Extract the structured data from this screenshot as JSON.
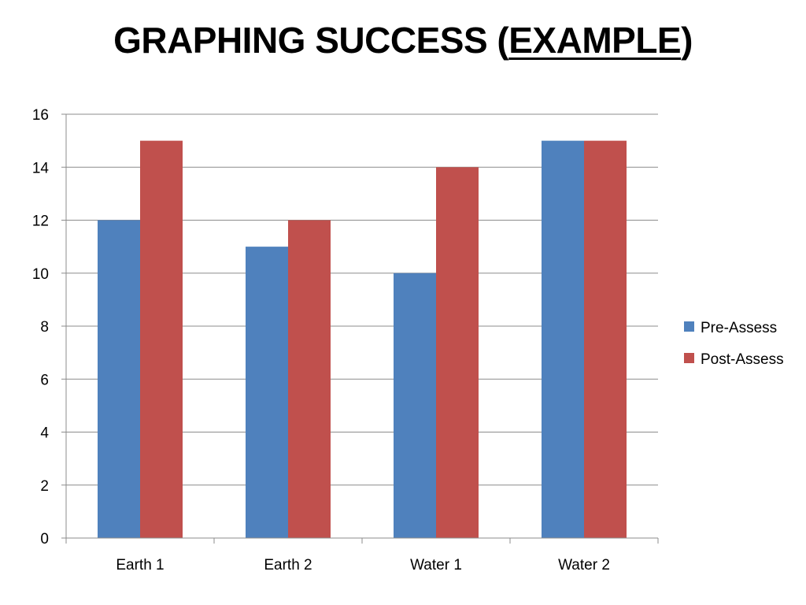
{
  "slide": {
    "title_prefix": "GRAPHING SUCCESS (",
    "title_emphasis": "EXAMPLE",
    "title_suffix": ")"
  },
  "chart_data": {
    "type": "bar",
    "categories": [
      "Earth 1",
      "Earth 2",
      "Water 1",
      "Water 2"
    ],
    "series": [
      {
        "name": "Pre-Assess",
        "values": [
          12,
          11,
          10,
          15
        ],
        "color": "#4f81bd"
      },
      {
        "name": "Post-Assess",
        "values": [
          15,
          12,
          14,
          15
        ],
        "color": "#c0504d"
      }
    ],
    "title": "",
    "xlabel": "",
    "ylabel": "",
    "ylim": [
      0,
      16
    ],
    "yticks": [
      0,
      2,
      4,
      6,
      8,
      10,
      12,
      14,
      16
    ],
    "grid": true,
    "legend_position": "right"
  }
}
